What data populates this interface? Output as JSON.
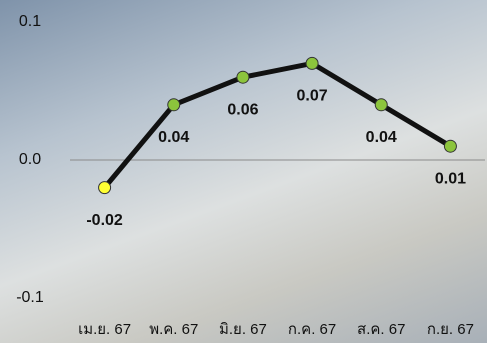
{
  "chart_data": {
    "type": "line",
    "categories": [
      "เม.ย. 67",
      "พ.ค. 67",
      "มิ.ย. 67",
      "ก.ค. 67",
      "ส.ค. 67",
      "ก.ย. 67"
    ],
    "values": [
      -0.02,
      0.04,
      0.06,
      0.07,
      0.04,
      0.01
    ],
    "value_labels": [
      "-0.02",
      "0.04",
      "0.06",
      "0.07",
      "0.04",
      "0.01"
    ],
    "color": "#111111",
    "marker_colors": [
      "#ffff33",
      "#8cc43c",
      "#8cc43c",
      "#8cc43c",
      "#8cc43c",
      "#8cc43c"
    ],
    "ylim": [
      -0.1,
      0.1
    ],
    "yticks": [
      {
        "value": -0.1,
        "label": "-0.1"
      },
      {
        "value": 0,
        "label": "0.0"
      },
      0.1
    ]
  }
}
